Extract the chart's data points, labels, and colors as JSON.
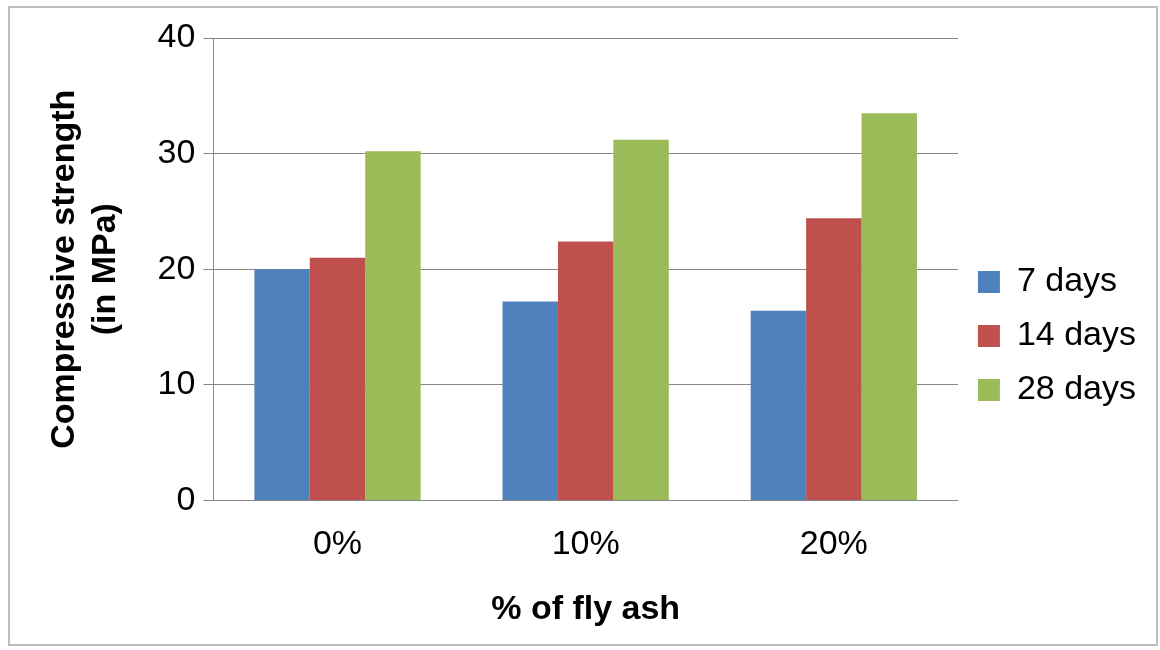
{
  "chart_data": {
    "type": "bar",
    "xlabel": "% of fly ash",
    "ylabel": "Compressive strength (in MPa)",
    "categories": [
      "0%",
      "10%",
      "20%"
    ],
    "series": [
      {
        "name": "7 days",
        "color": "#4f81bd",
        "values": [
          20,
          17.2,
          16.4
        ]
      },
      {
        "name": "14 days",
        "color": "#c0504d",
        "values": [
          21,
          22.4,
          24.4
        ]
      },
      {
        "name": "28 days",
        "color": "#9bbb59",
        "values": [
          30.2,
          31.2,
          33.5
        ]
      }
    ],
    "ylim": [
      0,
      40
    ],
    "yticks": [
      0,
      10,
      20,
      30,
      40
    ],
    "grid": "y",
    "legend": "right"
  }
}
